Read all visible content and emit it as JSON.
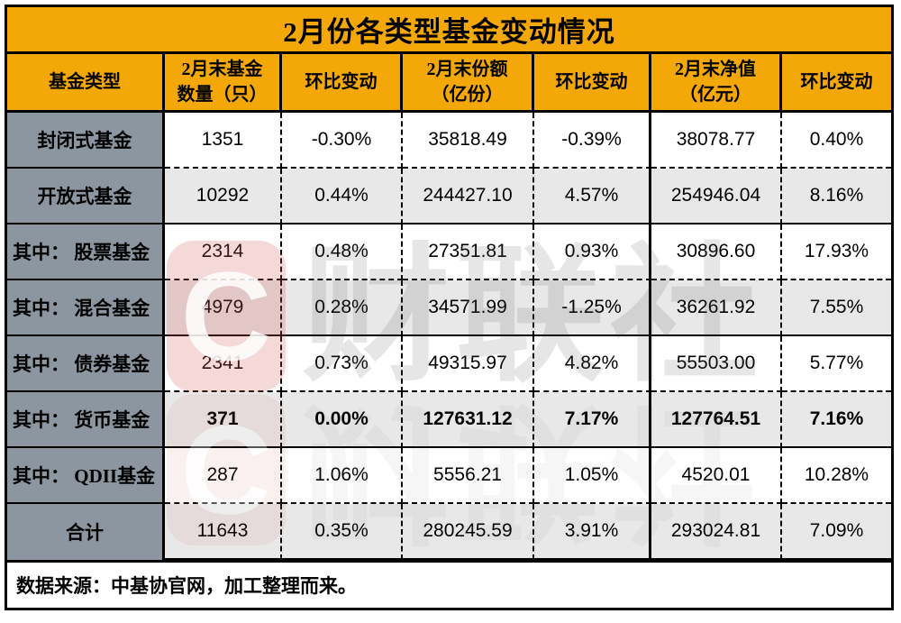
{
  "title": "2月份各类型基金变动情况",
  "chart_data": {
    "type": "table",
    "title": "2月份各类型基金变动情况",
    "header": [
      {
        "lines": [
          "基金类型"
        ]
      },
      {
        "lines": [
          "2月末基金",
          "数量（只）"
        ]
      },
      {
        "lines": [
          "环比变动"
        ]
      },
      {
        "lines": [
          "2月末份额",
          "（亿份）"
        ]
      },
      {
        "lines": [
          "环比变动"
        ]
      },
      {
        "lines": [
          "2月末净值",
          "（亿元）"
        ]
      },
      {
        "lines": [
          "环比变动"
        ]
      }
    ],
    "rows": [
      {
        "label": "封闭式基金",
        "indent": false,
        "bold": false,
        "values": [
          "1351",
          "-0.30%",
          "35818.49",
          "-0.39%",
          "38078.77",
          "0.40%"
        ]
      },
      {
        "label": "开放式基金",
        "indent": false,
        "bold": false,
        "values": [
          "10292",
          "0.44%",
          "244427.10",
          "4.57%",
          "254946.04",
          "8.16%"
        ]
      },
      {
        "label": "其中： 股票基金",
        "indent": true,
        "bold": false,
        "values": [
          "2314",
          "0.48%",
          "27351.81",
          "0.93%",
          "30896.60",
          "17.93%"
        ]
      },
      {
        "label": "其中： 混合基金",
        "indent": true,
        "bold": false,
        "values": [
          "4979",
          "0.28%",
          "34571.99",
          "-1.25%",
          "36261.92",
          "7.55%"
        ]
      },
      {
        "label": "其中： 债券基金",
        "indent": true,
        "bold": false,
        "values": [
          "2341",
          "0.73%",
          "49315.97",
          "4.82%",
          "55503.00",
          "5.77%"
        ]
      },
      {
        "label": "其中： 货币基金",
        "indent": true,
        "bold": true,
        "values": [
          "371",
          "0.00%",
          "127631.12",
          "7.17%",
          "127764.51",
          "7.16%"
        ]
      },
      {
        "label": "其中： QDII基金",
        "indent": true,
        "bold": false,
        "values": [
          "287",
          "1.06%",
          "5556.21",
          "1.05%",
          "4520.01",
          "10.28%"
        ]
      },
      {
        "label": "合计",
        "indent": false,
        "bold": false,
        "values": [
          "11643",
          "0.35%",
          "280245.59",
          "3.91%",
          "293024.81",
          "7.09%"
        ]
      }
    ],
    "source_note": "数据来源：中基协官网，加工整理而来。"
  },
  "watermark": {
    "logo_letter": "C",
    "text": "财联社"
  },
  "colors": {
    "title_bg": "#F4A808",
    "header_bg": "#F4A808",
    "label_bg": "#8C96A1",
    "row_shaded_bg": "#E8E8E8",
    "row_plain_bg": "#FFFFFF",
    "border": "#000000",
    "watermark_red": "#D65C5C",
    "watermark_gray": "#646464"
  }
}
